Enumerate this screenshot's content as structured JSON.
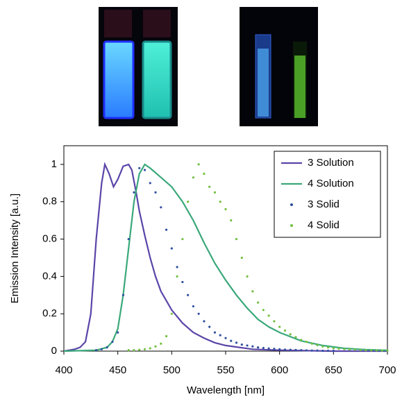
{
  "chart_data": {
    "type": "line",
    "xlabel": "Wavelength [nm]",
    "ylabel": "Emission Intensity [a.u.]",
    "xlim": [
      400,
      700
    ],
    "xticks": [
      400,
      450,
      500,
      550,
      600,
      650,
      700
    ],
    "ylim": [
      0,
      1.1
    ],
    "yticks": [
      0,
      0.2,
      0.4,
      0.6,
      0.8,
      1
    ],
    "legend": "upper right",
    "series": [
      {
        "name": "3 Solution",
        "color": "#5a44a8",
        "style": "line",
        "x": [
          400,
          410,
          415,
          420,
          425,
          430,
          435,
          438,
          442,
          446,
          450,
          455,
          460,
          463,
          467,
          470,
          475,
          480,
          485,
          490,
          495,
          500,
          510,
          520,
          530,
          540,
          550,
          575,
          600,
          650,
          700
        ],
        "values": [
          0,
          0.01,
          0.02,
          0.05,
          0.2,
          0.6,
          0.9,
          1.0,
          0.95,
          0.88,
          0.92,
          0.99,
          1.0,
          0.97,
          0.85,
          0.75,
          0.62,
          0.5,
          0.4,
          0.32,
          0.27,
          0.22,
          0.15,
          0.1,
          0.07,
          0.045,
          0.03,
          0.01,
          0.005,
          0,
          0
        ]
      },
      {
        "name": "4 Solution",
        "color": "#3aa87a",
        "style": "line",
        "x": [
          400,
          430,
          440,
          445,
          450,
          455,
          460,
          465,
          470,
          475,
          480,
          490,
          500,
          510,
          520,
          530,
          540,
          550,
          560,
          570,
          580,
          590,
          600,
          620,
          640,
          660,
          680,
          700
        ],
        "values": [
          0,
          0.005,
          0.02,
          0.05,
          0.12,
          0.3,
          0.55,
          0.8,
          0.95,
          1.0,
          0.98,
          0.93,
          0.88,
          0.8,
          0.7,
          0.58,
          0.47,
          0.38,
          0.3,
          0.23,
          0.17,
          0.13,
          0.1,
          0.055,
          0.03,
          0.015,
          0.008,
          0.004
        ]
      },
      {
        "name": "3 Solid",
        "color": "#3050a0",
        "style": "dots",
        "x": [
          430,
          435,
          440,
          445,
          450,
          455,
          460,
          465,
          470,
          475,
          480,
          485,
          490,
          495,
          500,
          505,
          510,
          515,
          520,
          525,
          530,
          535,
          540,
          545,
          550,
          555,
          560,
          565,
          570,
          575,
          580,
          585,
          590,
          595,
          600,
          605,
          610,
          615,
          620,
          625,
          630,
          635,
          640,
          645,
          650
        ],
        "values": [
          0.005,
          0.01,
          0.02,
          0.05,
          0.1,
          0.3,
          0.6,
          0.85,
          0.98,
          0.97,
          0.9,
          0.85,
          0.77,
          0.65,
          0.55,
          0.45,
          0.37,
          0.3,
          0.24,
          0.2,
          0.16,
          0.13,
          0.1,
          0.085,
          0.07,
          0.055,
          0.045,
          0.035,
          0.03,
          0.025,
          0.02,
          0.017,
          0.014,
          0.012,
          0.01,
          0.008,
          0.007,
          0.006,
          0.005,
          0.004,
          0.003,
          0.003,
          0.002,
          0.002,
          0.002
        ]
      },
      {
        "name": "4 Solid",
        "color": "#72c040",
        "style": "dots",
        "x": [
          460,
          465,
          470,
          475,
          480,
          485,
          490,
          495,
          500,
          505,
          510,
          515,
          520,
          525,
          530,
          535,
          540,
          545,
          550,
          555,
          560,
          565,
          570,
          575,
          580,
          585,
          590,
          595,
          600,
          605,
          610,
          615,
          620,
          625,
          630,
          635,
          640,
          645,
          650,
          655,
          660,
          665,
          670,
          675,
          680,
          685,
          690,
          695,
          700
        ],
        "values": [
          0.005,
          0.005,
          0.007,
          0.01,
          0.015,
          0.025,
          0.04,
          0.08,
          0.2,
          0.4,
          0.6,
          0.8,
          0.93,
          1.0,
          0.95,
          0.88,
          0.85,
          0.8,
          0.76,
          0.7,
          0.6,
          0.5,
          0.4,
          0.32,
          0.26,
          0.22,
          0.19,
          0.16,
          0.13,
          0.11,
          0.09,
          0.075,
          0.06,
          0.05,
          0.04,
          0.032,
          0.025,
          0.02,
          0.016,
          0.013,
          0.011,
          0.009,
          0.008,
          0.006,
          0.005,
          0.004,
          0.004,
          0.003,
          0.003
        ]
      }
    ]
  }
}
